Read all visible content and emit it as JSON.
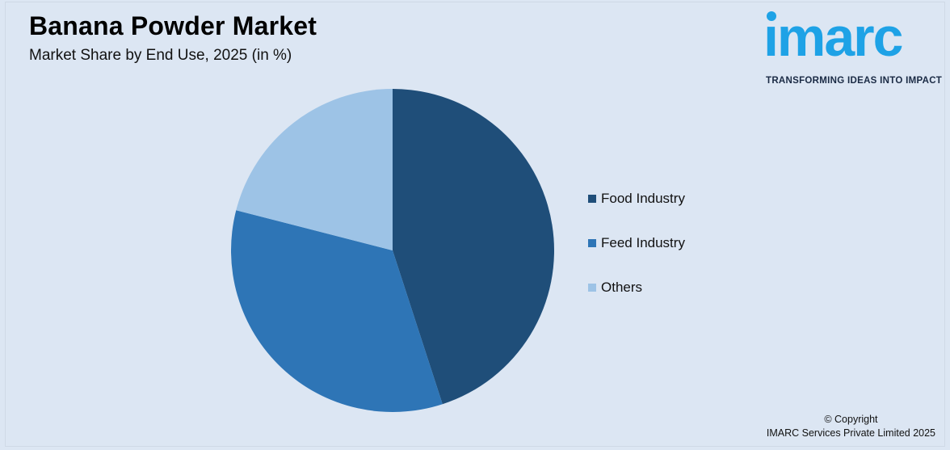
{
  "header": {
    "title": "Banana Powder Market",
    "subtitle": "Market Share by End Use, 2025 (in %)"
  },
  "logo": {
    "word": "ımarc",
    "tagline": "TRANSFORMING IDEAS INTO IMPACT",
    "color": "#1ea2e6"
  },
  "chart_data": {
    "type": "pie",
    "title": "Banana Powder Market",
    "subtitle": "Market Share by End Use, 2025 (in %)",
    "start_angle_deg": 0,
    "direction": "clockwise",
    "legend_position": "right",
    "slices": [
      {
        "label": "Food Industry",
        "value": 45,
        "color": "#1f4e79"
      },
      {
        "label": "Feed Industry",
        "value": 34,
        "color": "#2e75b6"
      },
      {
        "label": "Others",
        "value": 21,
        "color": "#9dc3e6"
      }
    ]
  },
  "footer": {
    "copyright_line1": "© Copyright",
    "copyright_line2": "IMARC Services Private Limited 2025"
  }
}
